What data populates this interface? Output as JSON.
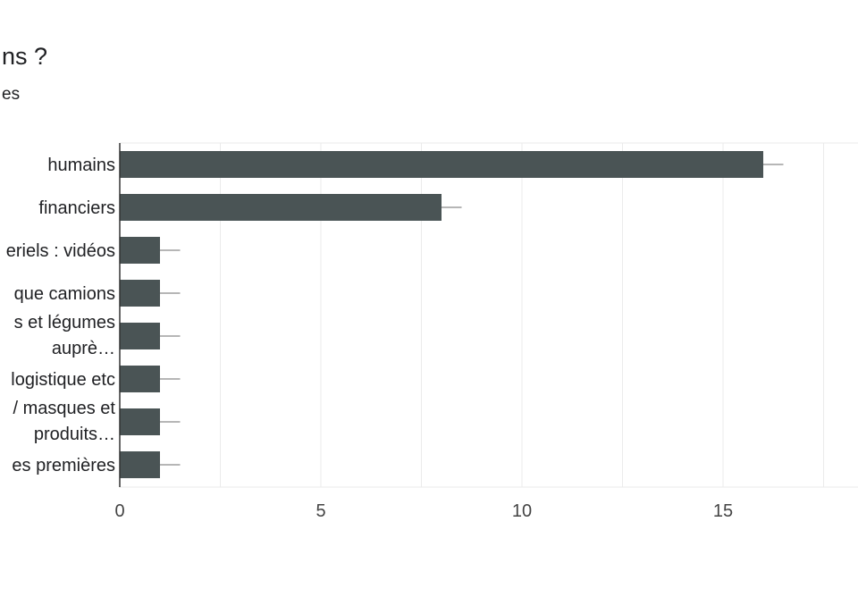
{
  "header": {
    "title": "ns ?",
    "subtitle": "es"
  },
  "chart_data": {
    "type": "bar",
    "orientation": "horizontal",
    "categories": [
      "humains",
      "financiers",
      "eriels : vidéos",
      "que camions",
      "s et légumes auprè…",
      "logistique etc",
      "/ masques et produits…",
      "es premières"
    ],
    "category_lines": [
      [
        "humains"
      ],
      [
        "financiers"
      ],
      [
        "eriels : vidéos"
      ],
      [
        "que camions"
      ],
      [
        "s et légumes",
        "auprè…"
      ],
      [
        "logistique etc"
      ],
      [
        "/ masques et",
        "produits…"
      ],
      [
        "es premières"
      ]
    ],
    "values": [
      16,
      8,
      1,
      1,
      1,
      1,
      1,
      1
    ],
    "error_bar": 0.5,
    "xlim": [
      0,
      18.5
    ],
    "xticks": [
      0,
      5,
      10,
      15
    ],
    "grid": true,
    "colors": {
      "bar": "#4a5455",
      "grid": "#ebebeb",
      "axis": "#333333",
      "error": "#9e9e9e"
    }
  }
}
